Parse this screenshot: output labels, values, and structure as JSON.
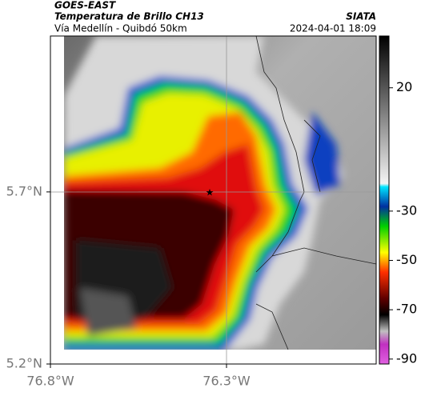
{
  "header": {
    "source": "GOES-EAST",
    "title": "Temperatura de Brillo CH13",
    "subtitle": "Vía Medellín - Quibdó 50km",
    "brand": "SIATA",
    "datetime": "2024-04-01 18:09"
  },
  "map": {
    "xlim": [
      -76.8,
      -75.875
    ],
    "ylim": [
      5.2,
      6.153
    ],
    "xticks": [
      {
        "value": -76.8,
        "label": "76.8°W"
      },
      {
        "value": -76.3,
        "label": "76.3°W"
      }
    ],
    "yticks": [
      {
        "value": 5.7,
        "label": "5.7°N"
      },
      {
        "value": 5.2,
        "label": "5.2°N"
      }
    ]
  },
  "colorbar": {
    "lim": [
      -92,
      41
    ],
    "ticks": [
      20,
      -30,
      -50,
      -70,
      -90
    ]
  }
}
